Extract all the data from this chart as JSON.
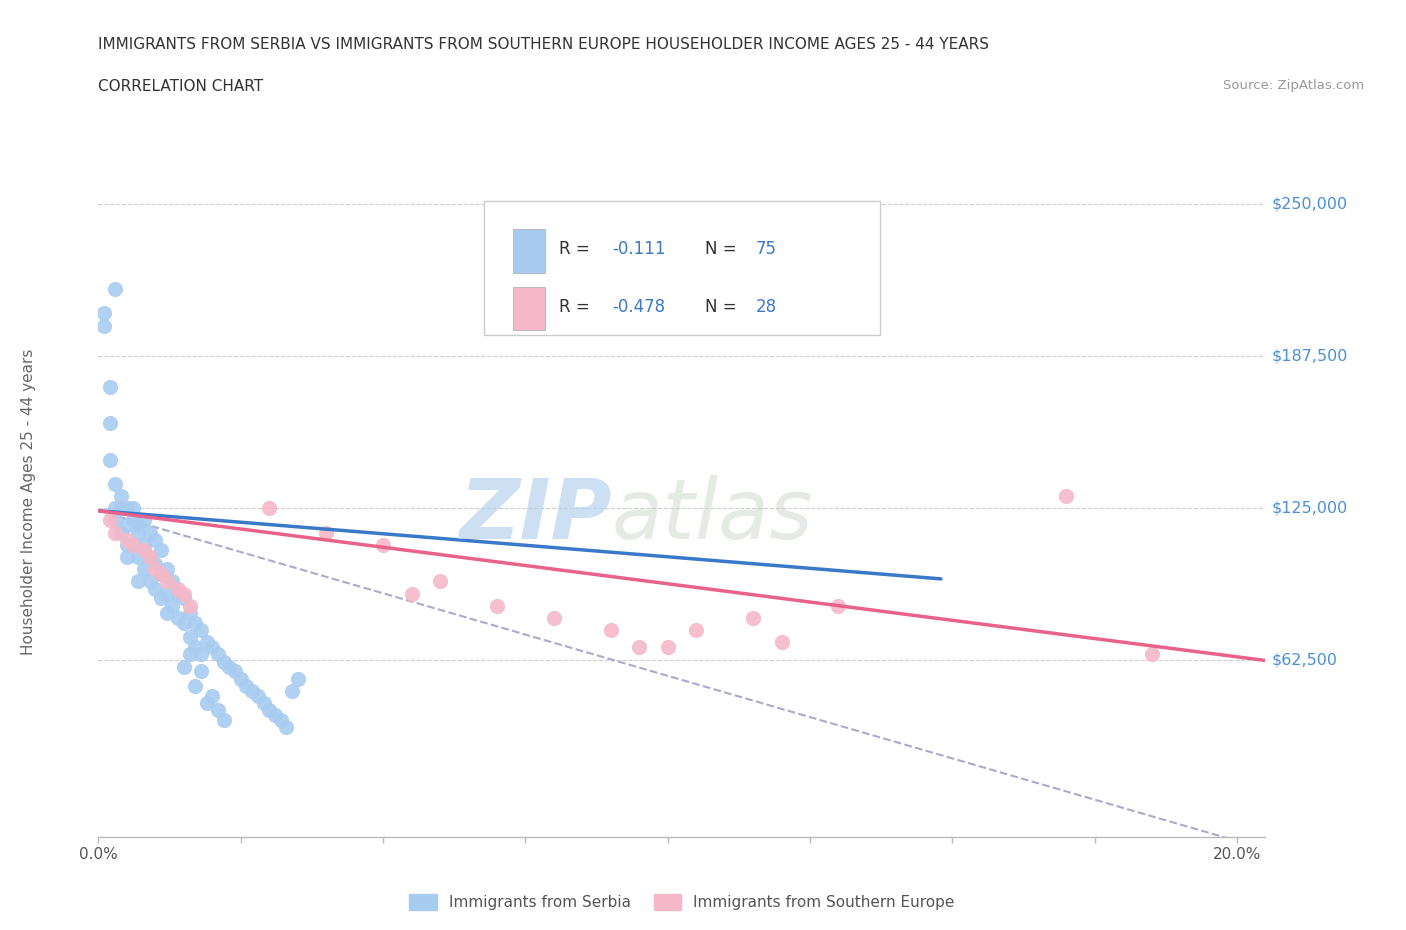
{
  "title_line1": "IMMIGRANTS FROM SERBIA VS IMMIGRANTS FROM SOUTHERN EUROPE HOUSEHOLDER INCOME AGES 25 - 44 YEARS",
  "title_line2": "CORRELATION CHART",
  "source_text": "Source: ZipAtlas.com",
  "watermark_zip": "ZIP",
  "watermark_atlas": "atlas",
  "ylabel": "Householder Income Ages 25 - 44 years",
  "xlim": [
    0.0,
    0.205
  ],
  "ylim": [
    -10000,
    265000
  ],
  "serbia_R": -0.111,
  "serbia_N": 75,
  "southern_R": -0.478,
  "southern_N": 28,
  "serbia_color": "#A8CCF0",
  "southern_color": "#F5B8C8",
  "serbia_line_color": "#3A78C9",
  "southern_line_color": "#E8628A",
  "overall_dashed_color": "#AAAACC",
  "legend_R_color": "#3A78C9",
  "ytick_vals": [
    62500,
    125000,
    187500,
    250000
  ],
  "ytick_labels": [
    "$62,500",
    "$125,000",
    "$187,500",
    "$250,000"
  ],
  "serbia_x": [
    0.001,
    0.001,
    0.002,
    0.002,
    0.002,
    0.003,
    0.003,
    0.003,
    0.003,
    0.004,
    0.004,
    0.004,
    0.005,
    0.005,
    0.005,
    0.005,
    0.006,
    0.006,
    0.006,
    0.007,
    0.007,
    0.007,
    0.007,
    0.008,
    0.008,
    0.008,
    0.009,
    0.009,
    0.009,
    0.01,
    0.01,
    0.01,
    0.011,
    0.011,
    0.011,
    0.012,
    0.012,
    0.012,
    0.013,
    0.013,
    0.014,
    0.014,
    0.015,
    0.015,
    0.016,
    0.016,
    0.017,
    0.017,
    0.018,
    0.018,
    0.019,
    0.02,
    0.021,
    0.022,
    0.023,
    0.024,
    0.025,
    0.026,
    0.027,
    0.028,
    0.029,
    0.03,
    0.031,
    0.032,
    0.033,
    0.034,
    0.035,
    0.015,
    0.016,
    0.017,
    0.018,
    0.019,
    0.02,
    0.021,
    0.022
  ],
  "serbia_y": [
    200000,
    205000,
    175000,
    160000,
    145000,
    135000,
    125000,
    120000,
    215000,
    130000,
    115000,
    125000,
    125000,
    118000,
    110000,
    105000,
    120000,
    110000,
    125000,
    115000,
    105000,
    118000,
    95000,
    110000,
    120000,
    100000,
    115000,
    105000,
    95000,
    112000,
    102000,
    92000,
    108000,
    98000,
    88000,
    100000,
    90000,
    82000,
    95000,
    85000,
    90000,
    80000,
    88000,
    78000,
    82000,
    72000,
    78000,
    68000,
    75000,
    65000,
    70000,
    68000,
    65000,
    62000,
    60000,
    58000,
    55000,
    52000,
    50000,
    48000,
    45000,
    42000,
    40000,
    38000,
    35000,
    50000,
    55000,
    60000,
    65000,
    52000,
    58000,
    45000,
    48000,
    42000,
    38000
  ],
  "southern_x": [
    0.002,
    0.003,
    0.005,
    0.006,
    0.008,
    0.009,
    0.01,
    0.011,
    0.012,
    0.014,
    0.015,
    0.016,
    0.03,
    0.04,
    0.05,
    0.055,
    0.06,
    0.07,
    0.08,
    0.09,
    0.095,
    0.1,
    0.105,
    0.115,
    0.12,
    0.13,
    0.17,
    0.185
  ],
  "southern_y": [
    120000,
    115000,
    112000,
    110000,
    108000,
    105000,
    100000,
    98000,
    95000,
    92000,
    90000,
    85000,
    125000,
    115000,
    110000,
    90000,
    95000,
    85000,
    80000,
    75000,
    68000,
    68000,
    75000,
    80000,
    70000,
    85000,
    130000,
    65000
  ],
  "serbia_trend_x": [
    0.0,
    0.148
  ],
  "serbia_trend_y": [
    124000,
    96000
  ],
  "southern_trend_x": [
    0.0,
    0.205
  ],
  "southern_trend_y": [
    124000,
    62500
  ],
  "dashed_trend_x": [
    0.0,
    0.205
  ],
  "dashed_trend_y": [
    124000,
    -15000
  ]
}
